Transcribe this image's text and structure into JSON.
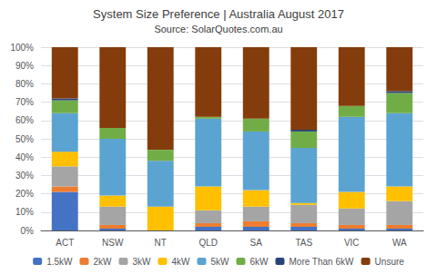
{
  "chart_data": {
    "type": "bar",
    "stacked": true,
    "title": "System Size Preference | Australia August 2017",
    "subtitle": "Source: SolarQuotes.com.au",
    "categories": [
      "ACT",
      "NSW",
      "NT",
      "QLD",
      "SA",
      "TAS",
      "VIC",
      "WA"
    ],
    "series": [
      {
        "name": "1.5kW",
        "color": "#4472C4",
        "values": [
          21,
          1,
          0,
          2,
          2,
          2,
          1,
          1
        ]
      },
      {
        "name": "2kW",
        "color": "#ED7D31",
        "values": [
          3,
          2,
          0,
          2,
          3,
          2,
          2,
          2
        ]
      },
      {
        "name": "3kW",
        "color": "#A5A5A5",
        "values": [
          11,
          10,
          0,
          7,
          8,
          10,
          9,
          13
        ]
      },
      {
        "name": "4kW",
        "color": "#FFC000",
        "values": [
          8,
          6,
          13,
          13,
          9,
          1,
          9,
          8
        ]
      },
      {
        "name": "5kW",
        "color": "#5BA3D0",
        "values": [
          21,
          31,
          25,
          37,
          32,
          30,
          41,
          40
        ]
      },
      {
        "name": "6kW",
        "color": "#70AD47",
        "values": [
          7,
          6,
          6,
          1,
          7,
          9,
          6,
          11
        ]
      },
      {
        "name": "More Than 6kW",
        "color": "#264478",
        "values": [
          1,
          0,
          0,
          0,
          0,
          1,
          0,
          1
        ]
      },
      {
        "name": "Unsure",
        "color": "#843C0C",
        "values": [
          28,
          44,
          56,
          38,
          39,
          45,
          32,
          24
        ]
      }
    ],
    "ylim": [
      0,
      100
    ],
    "yticks": [
      {
        "value": 0,
        "label": "0%"
      },
      {
        "value": 10,
        "label": "10%"
      },
      {
        "value": 20,
        "label": "20%"
      },
      {
        "value": 30,
        "label": "30%"
      },
      {
        "value": 40,
        "label": "40%"
      },
      {
        "value": 50,
        "label": "50%"
      },
      {
        "value": 60,
        "label": "60%"
      },
      {
        "value": 70,
        "label": "70%"
      },
      {
        "value": 80,
        "label": "80%"
      },
      {
        "value": 90,
        "label": "90%"
      },
      {
        "value": 100,
        "label": "100%"
      }
    ],
    "grid": true,
    "legend": "bottom"
  }
}
